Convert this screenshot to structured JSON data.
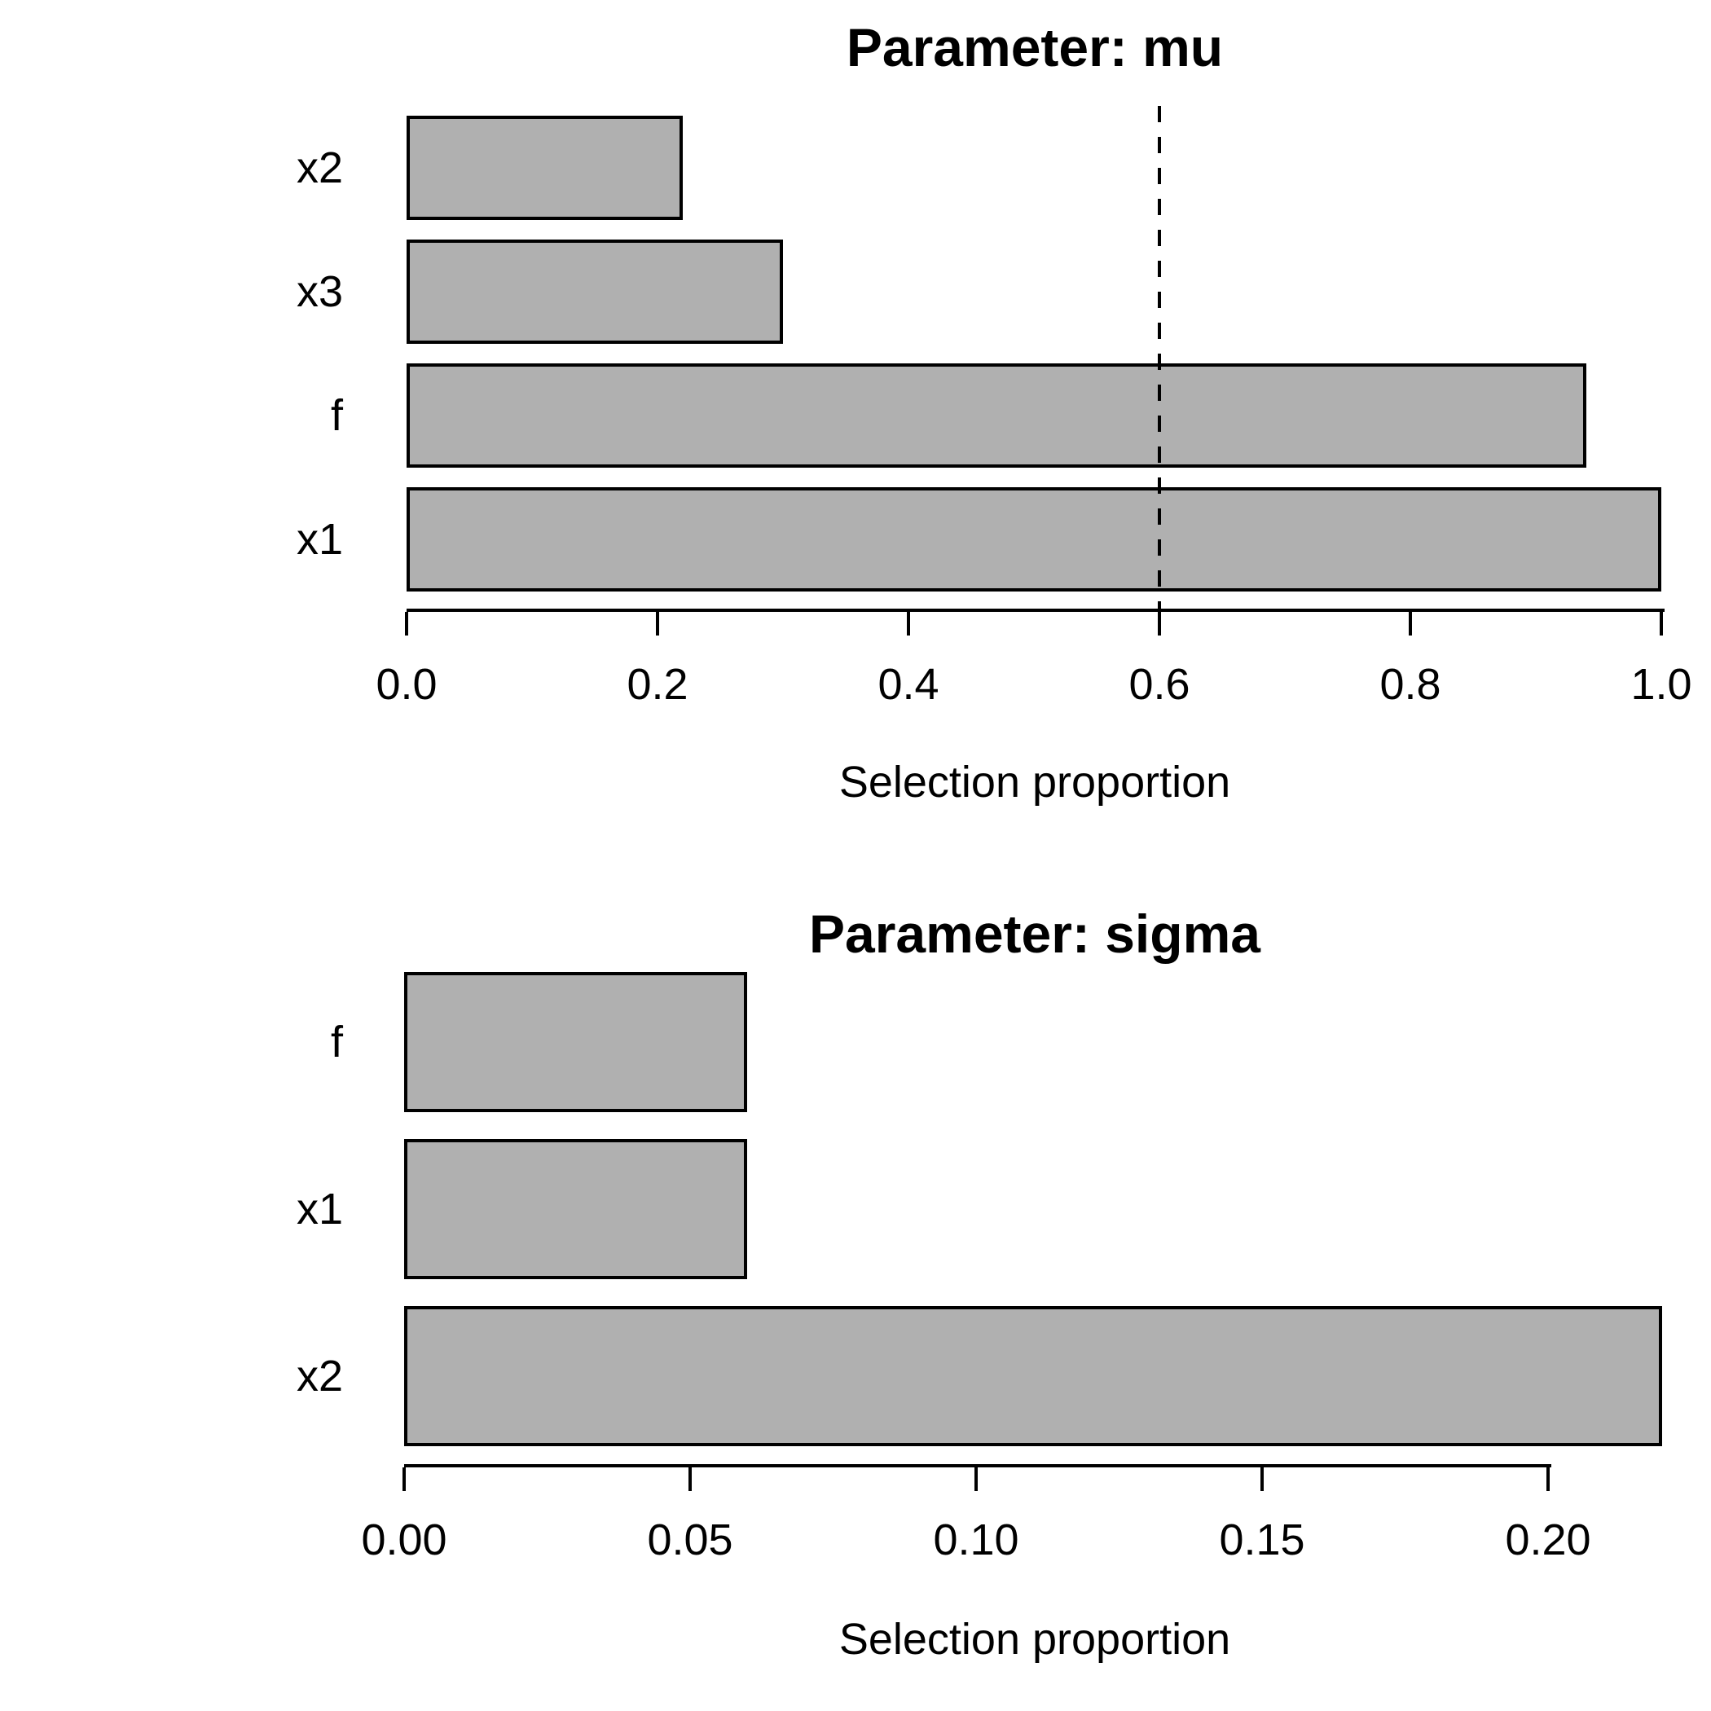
{
  "chart_data": [
    {
      "type": "bar",
      "orientation": "horizontal",
      "title": "Parameter: mu",
      "xlabel": "Selection proportion",
      "categories": [
        "x2",
        "x3",
        "f",
        "x1"
      ],
      "values": [
        0.22,
        0.3,
        0.94,
        1.0
      ],
      "x_ticks": [
        {
          "value": 0.0,
          "label": "0.0"
        },
        {
          "value": 0.2,
          "label": "0.2"
        },
        {
          "value": 0.4,
          "label": "0.4"
        },
        {
          "value": 0.6,
          "label": "0.6"
        },
        {
          "value": 0.8,
          "label": "0.8"
        },
        {
          "value": 1.0,
          "label": "1.0"
        }
      ],
      "xlim": [
        0.0,
        1.0
      ],
      "reference_line": {
        "value": 0.6,
        "style": "dashed",
        "color": "#000000"
      },
      "grid": false,
      "legend": null,
      "bar_fill_color": "#b0b0b0",
      "bar_border_color": "#000000"
    },
    {
      "type": "bar",
      "orientation": "horizontal",
      "title": "Parameter: sigma",
      "xlabel": "Selection proportion",
      "categories": [
        "f",
        "x1",
        "x2"
      ],
      "values": [
        0.06,
        0.06,
        0.22
      ],
      "x_ticks": [
        {
          "value": 0.0,
          "label": "0.00"
        },
        {
          "value": 0.05,
          "label": "0.05"
        },
        {
          "value": 0.1,
          "label": "0.10"
        },
        {
          "value": 0.15,
          "label": "0.15"
        },
        {
          "value": 0.2,
          "label": "0.20"
        }
      ],
      "xlim": [
        0.0,
        0.2
      ],
      "reference_line": null,
      "grid": false,
      "legend": null,
      "bar_fill_color": "#b0b0b0",
      "bar_border_color": "#000000"
    }
  ]
}
